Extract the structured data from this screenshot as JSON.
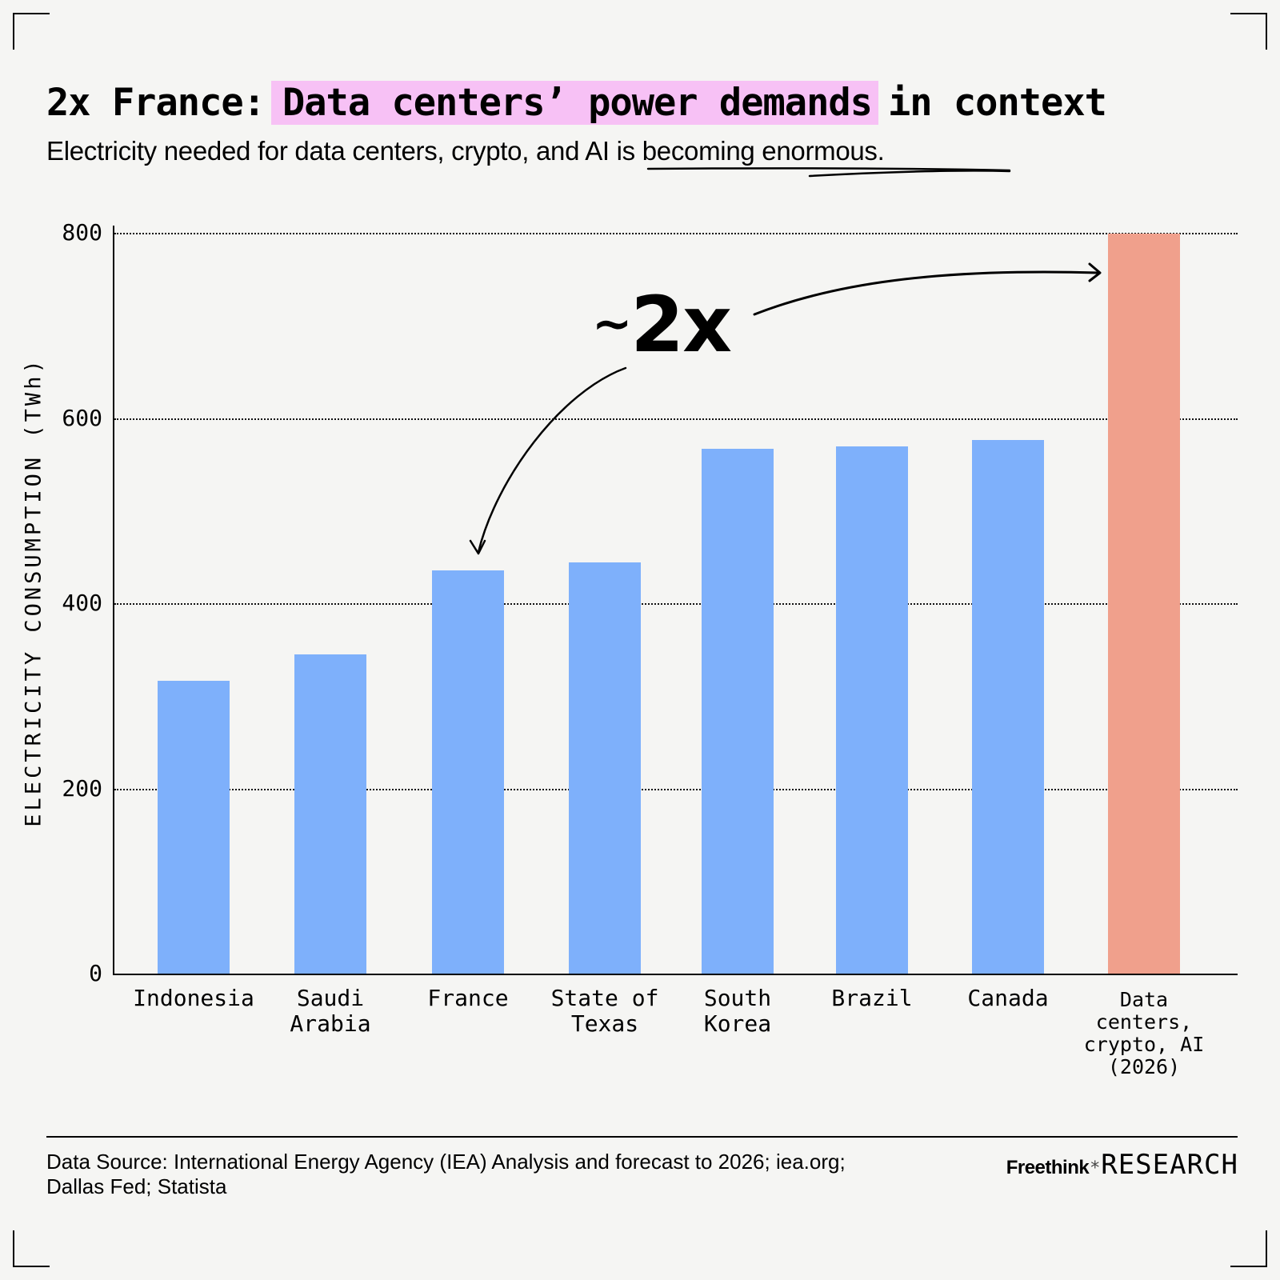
{
  "header": {
    "title_prefix": "2x France:",
    "title_highlight": "Data centers’ power demands",
    "title_suffix": "in context",
    "subtitle_plain": "Electricity needed for data centers, crypto, and ",
    "subtitle_underlined": "AI is becoming enormous."
  },
  "annotation": {
    "tilde": "~",
    "text": "2x"
  },
  "footer": {
    "source": "Data Source: International Energy Agency (IEA) Analysis and forecast to 2026; iea.org; Dallas Fed; Statista",
    "brand_name": "Freethink",
    "brand_star": "*",
    "brand_suffix": "RESEARCH"
  },
  "colors": {
    "background": "#f5f5f3",
    "highlight": "#f7c1f5",
    "bar_blue": "#7eb0fb",
    "bar_salmon": "#f0a08c"
  },
  "chart_data": {
    "type": "bar",
    "title": "2x France: Data centers’ power demands in context",
    "subtitle": "Electricity needed for data centers, crypto, and AI is becoming enormous.",
    "xlabel": "",
    "ylabel": "ELECTRICITY CONSUMPTION (TWh)",
    "ylim": [
      0,
      800
    ],
    "yticks": [
      0,
      200,
      400,
      600,
      800
    ],
    "grid": true,
    "grid_style": "dotted horizontal",
    "categories": [
      "Indonesia",
      "Saudi Arabia",
      "France",
      "State of Texas",
      "South Korea",
      "Brazil",
      "Canada",
      "Data centers, crypto, AI (2026)"
    ],
    "category_labels": [
      "Indonesia",
      "Saudi\nArabia",
      "France",
      "State of\nTexas",
      "South\nKorea",
      "Brazil",
      "Canada",
      "Data\ncenters,\ncrypto, AI\n(2026)"
    ],
    "values": [
      317,
      346,
      436,
      445,
      568,
      570,
      577,
      800
    ],
    "bar_colors": [
      "#7eb0fb",
      "#7eb0fb",
      "#7eb0fb",
      "#7eb0fb",
      "#7eb0fb",
      "#7eb0fb",
      "#7eb0fb",
      "#f0a08c"
    ],
    "annotations": [
      {
        "text": "~2x",
        "from": "France",
        "to": "Data centers, crypto, AI (2026)",
        "type": "curved arrows"
      }
    ]
  }
}
